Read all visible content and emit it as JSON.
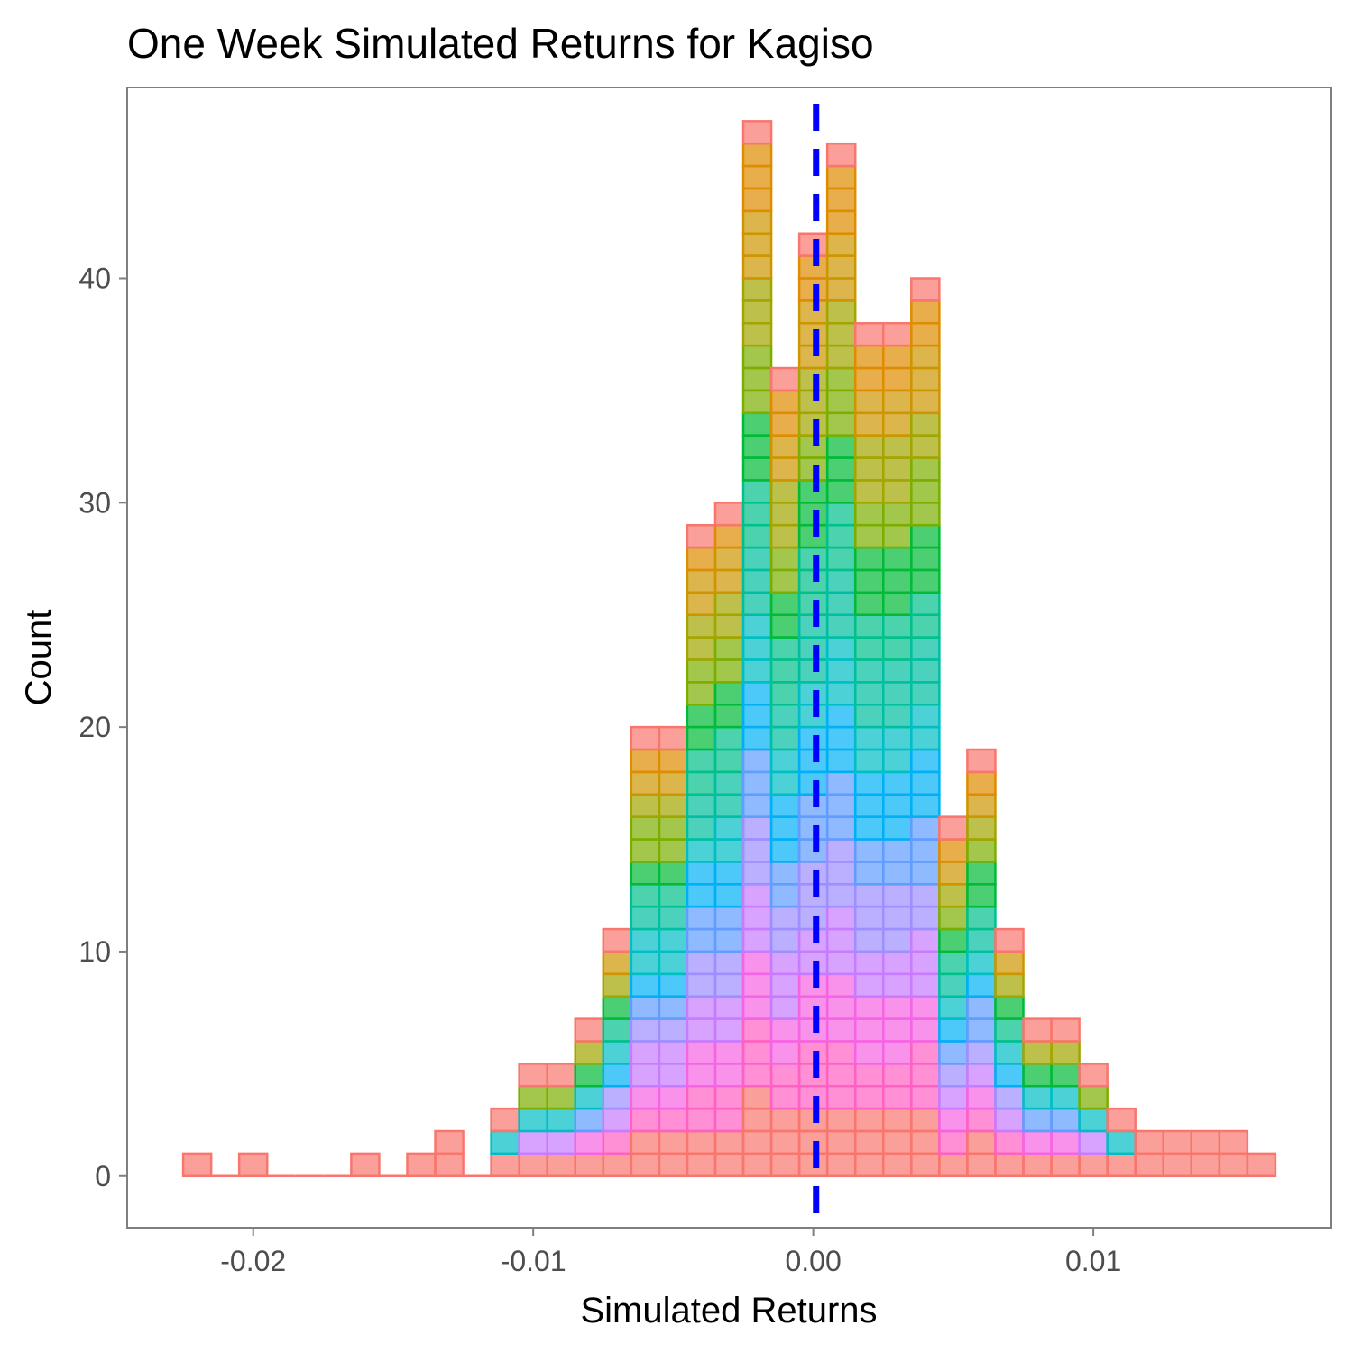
{
  "chart_data": {
    "type": "histogram",
    "title": "One Week Simulated Returns for Kagiso",
    "xlabel": "Simulated Returns",
    "ylabel": "Count",
    "bin_width": 0.001,
    "bin_start": -0.0225,
    "x": [
      -0.022,
      -0.021,
      -0.02,
      -0.019,
      -0.018,
      -0.017,
      -0.016,
      -0.015,
      -0.014,
      -0.013,
      -0.012,
      -0.011,
      -0.01,
      -0.009,
      -0.008,
      -0.007,
      -0.006,
      -0.005,
      -0.004,
      -0.003,
      -0.002,
      -0.001,
      0.0,
      0.001,
      0.002,
      0.003,
      0.004,
      0.005,
      0.006,
      0.007,
      0.008,
      0.009,
      0.01,
      0.011,
      0.012,
      0.013,
      0.014,
      0.015,
      0.016
    ],
    "counts": [
      1,
      0,
      1,
      0,
      0,
      0,
      1,
      0,
      1,
      2,
      0,
      3,
      5,
      5,
      7,
      11,
      20,
      20,
      29,
      30,
      47,
      36,
      42,
      46,
      38,
      38,
      40,
      16,
      19,
      11,
      7,
      7,
      5,
      3,
      2,
      2,
      2,
      2,
      1
    ],
    "xlim": [
      -0.0245,
      0.0185
    ],
    "ylim": [
      -2.3,
      48.5
    ],
    "x_ticks": [
      -0.02,
      -0.01,
      0.0,
      0.01
    ],
    "x_tick_labels": [
      "-0.02",
      "-0.01",
      "0.00",
      "0.01"
    ],
    "y_ticks": [
      0,
      10,
      20,
      30,
      40
    ],
    "y_tick_labels": [
      "0",
      "10",
      "20",
      "30",
      "40"
    ],
    "mean_line": {
      "value": 0.0001,
      "color": "#0000ff",
      "style": "dashed"
    },
    "grid": false,
    "stack_palette": [
      "#f8766d",
      "#ff61c3",
      "#f564e3",
      "#c77cff",
      "#9d8fff",
      "#619cff",
      "#00b0f6",
      "#00bfc4",
      "#00bfa0",
      "#00c08b",
      "#00ba38",
      "#7cae00",
      "#a3a500",
      "#cd9600",
      "#de8c00",
      "#f8766d"
    ]
  }
}
